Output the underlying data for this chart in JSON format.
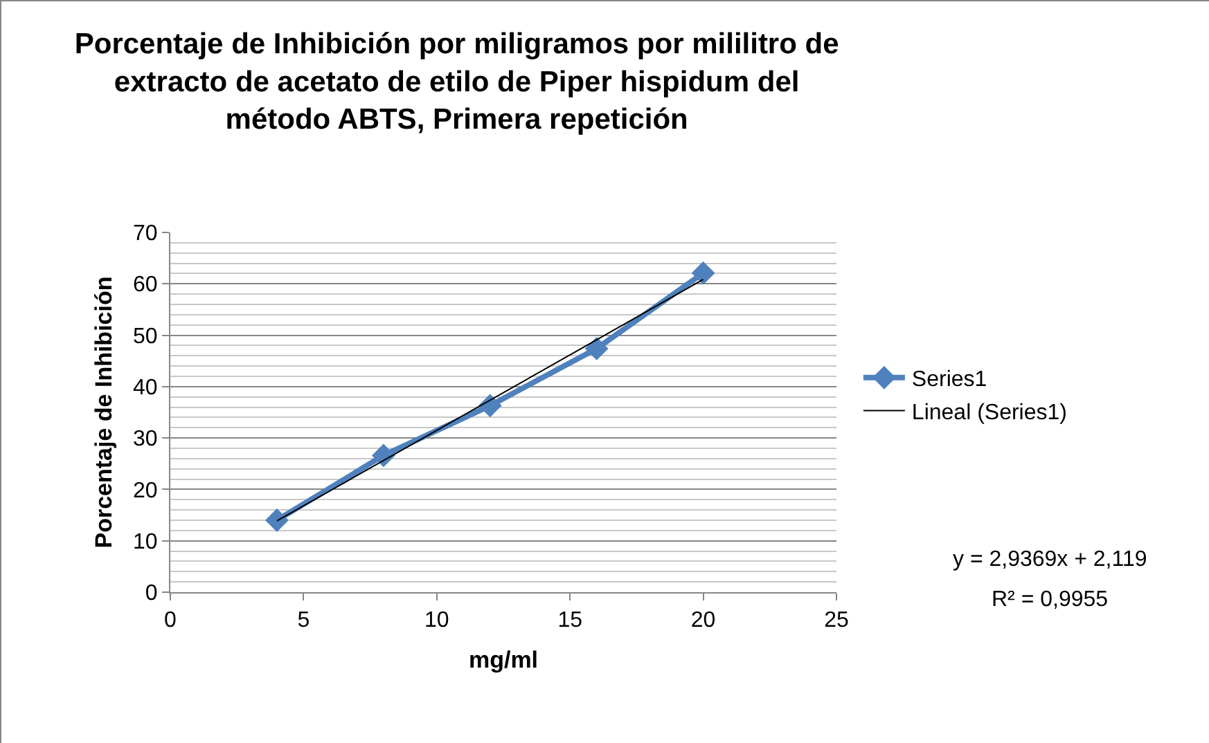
{
  "chart_data": {
    "type": "line",
    "title": "Porcentaje de Inhibición por miligramos por mililitro de\nextracto de acetato de etilo de Piper hispidum del\nmétodo ABTS, Primera repetición",
    "xlabel": "mg/ml",
    "ylabel": "Porcentaje de Inhibición",
    "x": [
      4,
      8,
      12,
      16,
      20
    ],
    "series": [
      {
        "name": "Series1",
        "color": "#4f81bd",
        "values": [
          14.0,
          26.6,
          36.3,
          47.4,
          62.1
        ],
        "marker": "diamond"
      },
      {
        "name": "Lineal (Series1)",
        "color": "#000000",
        "type": "line",
        "x": [
          4,
          20
        ],
        "values": [
          13.87,
          60.86
        ],
        "marker": "none"
      }
    ],
    "xlim": [
      0,
      25
    ],
    "xticks": [
      0,
      5,
      10,
      15,
      20,
      25
    ],
    "ylim": [
      0,
      70
    ],
    "yticks": [
      0,
      10,
      20,
      30,
      40,
      50,
      60,
      70
    ],
    "grid": "y",
    "legend": "right",
    "annotations": [
      "y = 2,9369x + 2,119",
      "R² = 0,9955"
    ]
  }
}
